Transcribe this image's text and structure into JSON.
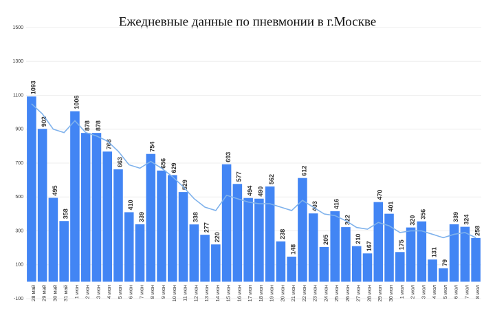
{
  "chart_data": {
    "type": "bar",
    "title": "Ежедневные данные по пневмонии в г.Москве",
    "categories": [
      "28 май",
      "29 май",
      "30 май",
      "31 май",
      "1 июн",
      "2 июн",
      "3 июн",
      "4 июн",
      "5 июн",
      "6 июн",
      "7 июн",
      "8 июн",
      "9 июн",
      "10 июн",
      "11 июн",
      "12 июн",
      "13 июн",
      "14 июн",
      "15 июн",
      "16 июн",
      "17 июн",
      "18 июн",
      "19 июн",
      "20 июн",
      "21 июн",
      "22 июн",
      "23 июн",
      "24 июн",
      "25 июн",
      "26 июн",
      "27 июн",
      "28 июн",
      "29 июн",
      "30 июн",
      "1 июл",
      "2 июл",
      "3 июл",
      "4 июл",
      "5 июл",
      "6 июл",
      "7 июл",
      "8 июл"
    ],
    "series": [
      {
        "type": "bar",
        "color": "#4285f4",
        "data_labels": true,
        "values": [
          1093,
          902,
          495,
          358,
          1006,
          878,
          878,
          768,
          663,
          410,
          339,
          754,
          656,
          629,
          529,
          338,
          277,
          220,
          693,
          577,
          494,
          490,
          562,
          238,
          148,
          612,
          403,
          205,
          416,
          322,
          210,
          167,
          470,
          401,
          175,
          320,
          356,
          131,
          79,
          339,
          324,
          258
        ]
      },
      {
        "type": "line",
        "color": "#7fb2ec",
        "values": [
          1050,
          990,
          900,
          880,
          950,
          880,
          860,
          830,
          770,
          690,
          670,
          710,
          670,
          620,
          560,
          490,
          440,
          420,
          510,
          490,
          470,
          460,
          460,
          440,
          420,
          480,
          440,
          400,
          390,
          360,
          320,
          310,
          350,
          330,
          290,
          300,
          300,
          280,
          260,
          280,
          290,
          260
        ]
      }
    ],
    "ylim": [
      -100,
      1500
    ],
    "yticks": [
      -100,
      100,
      300,
      500,
      700,
      900,
      1100,
      1300,
      1500
    ],
    "grid": true
  }
}
